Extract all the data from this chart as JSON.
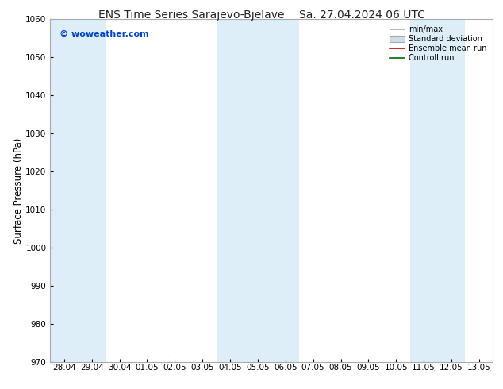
{
  "title": "ENS Time Series Sarajevo-Bjelave",
  "title2": "Sa. 27.04.2024 06 UTC",
  "ylabel": "Surface Pressure (hPa)",
  "ylim": [
    970,
    1060
  ],
  "yticks": [
    970,
    980,
    990,
    1000,
    1010,
    1020,
    1030,
    1040,
    1050,
    1060
  ],
  "x_labels": [
    "28.04",
    "29.04",
    "30.04",
    "01.05",
    "02.05",
    "03.05",
    "04.05",
    "05.05",
    "06.05",
    "07.05",
    "08.05",
    "09.05",
    "10.05",
    "11.05",
    "12.05",
    "13.05"
  ],
  "bg_color": "#ffffff",
  "band_color": "#ddeef8",
  "band_color_alt": "#ffffff",
  "blue_band_indices": [
    0,
    1,
    6,
    7,
    8,
    13,
    14
  ],
  "watermark": "© woweather.com",
  "watermark_color": "#0044cc",
  "legend_items": [
    "min/max",
    "Standard deviation",
    "Ensemble mean run",
    "Controll run"
  ],
  "legend_line_color": "#aaaaaa",
  "legend_std_color": "#ccdde8",
  "legend_ens_color": "#cc0000",
  "legend_ctrl_color": "#006600",
  "title_fontsize": 10,
  "tick_fontsize": 7.5,
  "ylabel_fontsize": 8.5
}
